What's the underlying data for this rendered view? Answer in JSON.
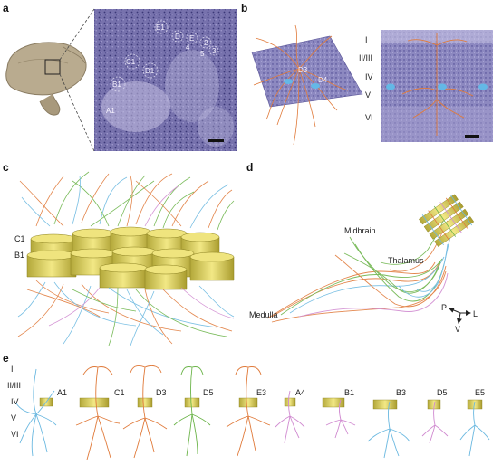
{
  "panels": {
    "a": {
      "letter": "a",
      "barrel_labels": [
        "E1",
        "D",
        "E",
        "2",
        "3",
        "4",
        "5",
        "C1",
        "D1",
        "B1",
        "A1"
      ]
    },
    "b": {
      "letter": "b",
      "barrel_labels": [
        "D3",
        "D4"
      ],
      "layers": [
        "I",
        "II/III",
        "IV",
        "V",
        "VI"
      ]
    },
    "c": {
      "letter": "c",
      "labels": [
        "C1",
        "B1"
      ]
    },
    "d": {
      "letter": "d",
      "region_labels": {
        "midbrain": "Midbrain",
        "thalamus": "Thalamus",
        "medulla": "Medulla"
      },
      "axes": {
        "p": "P",
        "l": "L",
        "v": "V"
      }
    },
    "e": {
      "letter": "e",
      "layers": [
        "I",
        "II/III",
        "IV",
        "V",
        "VI"
      ],
      "cells": [
        "A1",
        "C1",
        "D3",
        "D5",
        "E3",
        "A4",
        "B1",
        "B3",
        "D5",
        "E5"
      ]
    }
  },
  "colors": {
    "orange": "#e07a3a",
    "green": "#6cb44a",
    "blue": "#6ab8e0",
    "pink": "#d08ad0",
    "barrel": "#e6d867",
    "stain": "#6d6aa8",
    "brain": "#b8a88e"
  }
}
